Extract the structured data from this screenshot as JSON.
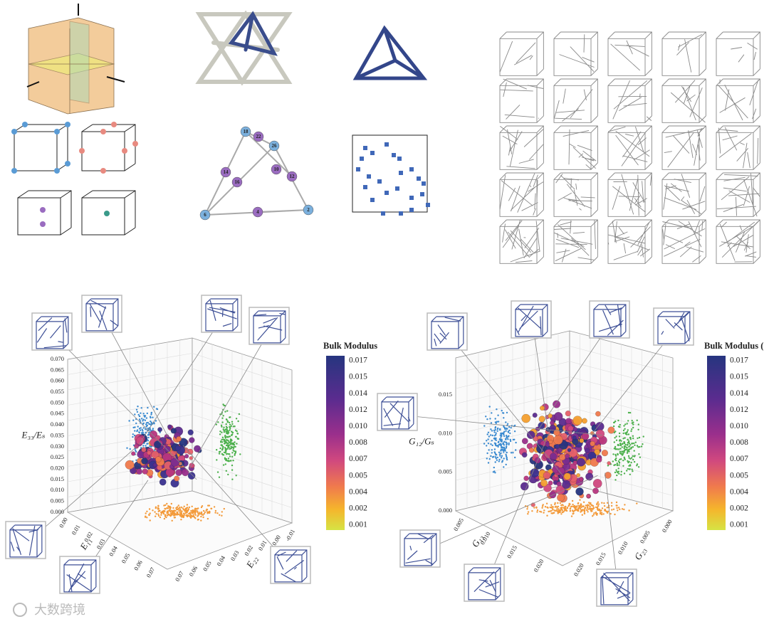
{
  "graph": {
    "nodes": [
      "18",
      "22",
      "26",
      "14",
      "16",
      "10",
      "12",
      "6",
      "4",
      "2"
    ]
  },
  "plots": [
    {
      "colorbar_title": "Bulk Modulus",
      "colorbar_ticks": [
        "0.017",
        "0.015",
        "0.014",
        "0.012",
        "0.010",
        "0.008",
        "0.007",
        "0.005",
        "0.004",
        "0.002",
        "0.001"
      ],
      "z_label": "E₃₃/Eₛ",
      "z_ticks": [
        "0.070",
        "0.065",
        "0.060",
        "0.055",
        "0.050",
        "0.045",
        "0.040",
        "0.035",
        "0.030",
        "0.025",
        "0.020",
        "0.015",
        "0.010",
        "0.005",
        "0.000"
      ],
      "x_label": "E₁₁",
      "x_ticks": [
        "0.00",
        "0.01",
        "0.02",
        "0.03",
        "0.04",
        "0.05",
        "0.06",
        "0.07"
      ],
      "y_label": "E₂₂",
      "y_ticks": [
        "0.07",
        "0.06",
        "0.05",
        "0.04",
        "0.03",
        "0.02",
        "0.01",
        "0.00",
        "-0.01"
      ]
    },
    {
      "colorbar_title": "Bulk Modulus (",
      "colorbar_ticks": [
        "0.017",
        "0.015",
        "0.014",
        "0.012",
        "0.010",
        "0.008",
        "0.007",
        "0.005",
        "0.004",
        "0.002",
        "0.001"
      ],
      "z_label": "G₁₂/Gₛ",
      "z_ticks": [
        "0.015",
        "0.010",
        "0.005",
        "0.000"
      ],
      "x_label": "G₁₃",
      "x_ticks": [
        "0.005",
        "0.010",
        "0.015",
        "0.020"
      ],
      "y_label": "G₂₃",
      "y_ticks": [
        "0.020",
        "0.015",
        "0.010",
        "0.005",
        "0.000"
      ]
    }
  ],
  "watermark": "大数跨境"
}
